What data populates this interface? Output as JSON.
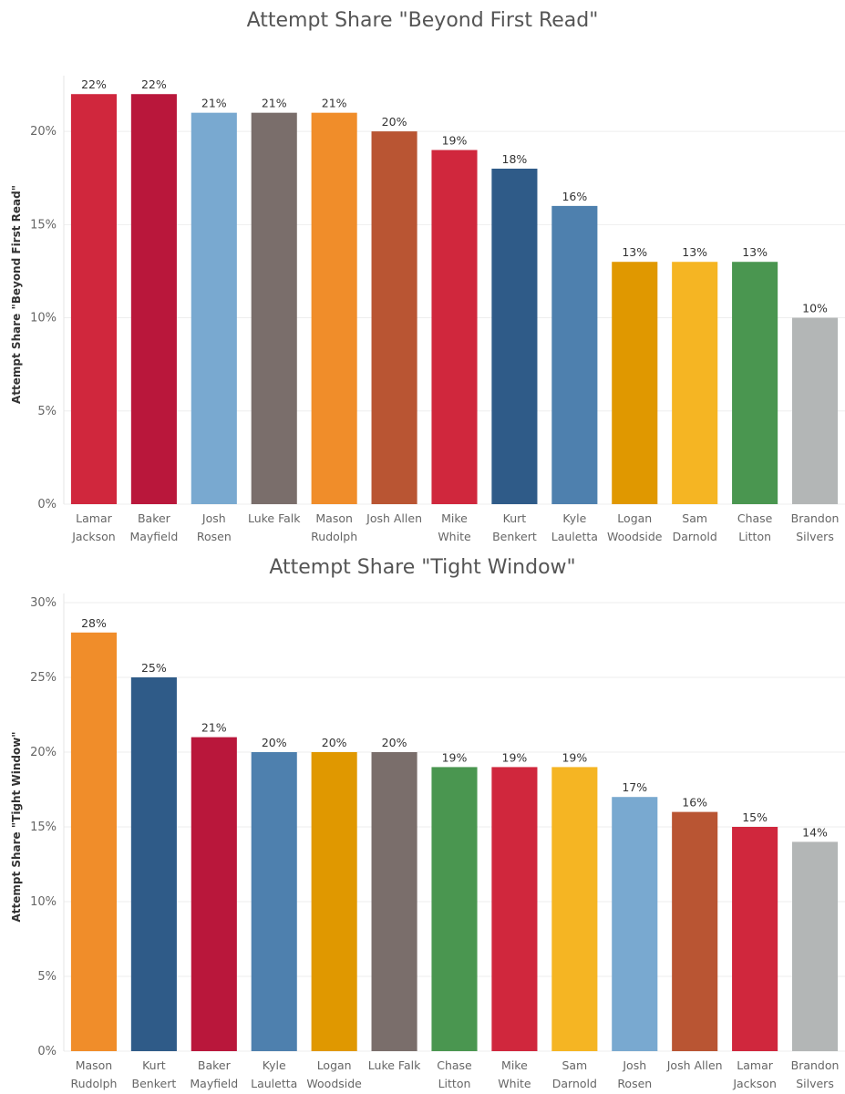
{
  "chart_data": [
    {
      "type": "bar",
      "title": "Attempt Share \"Beyond First Read\"",
      "ylabel": "Attempt Share \"Beyond First Read\"",
      "xlabel": "",
      "ylim": [
        0,
        22.5
      ],
      "yticks": [
        0,
        5,
        10,
        15,
        20
      ],
      "ytick_labels": [
        "0%",
        "5%",
        "10%",
        "15%",
        "20%"
      ],
      "grid": true,
      "categories": [
        [
          "Lamar",
          "Jackson"
        ],
        [
          "Baker",
          "Mayfield"
        ],
        [
          "Josh",
          "Rosen"
        ],
        [
          "Luke Falk"
        ],
        [
          "Mason",
          "Rudolph"
        ],
        [
          "Josh Allen"
        ],
        [
          "Mike",
          "White"
        ],
        [
          "Kurt",
          "Benkert"
        ],
        [
          "Kyle",
          "Lauletta"
        ],
        [
          "Logan",
          "Woodside"
        ],
        [
          "Sam",
          "Darnold"
        ],
        [
          "Chase",
          "Litton"
        ],
        [
          "Brandon",
          "Silvers"
        ]
      ],
      "values": [
        22,
        22,
        21,
        21,
        21,
        20,
        19,
        18,
        16,
        13,
        13,
        13,
        10
      ],
      "value_labels": [
        "22%",
        "22%",
        "21%",
        "21%",
        "21%",
        "20%",
        "19%",
        "18%",
        "16%",
        "13%",
        "13%",
        "13%",
        "10%"
      ],
      "colors": [
        "#d0273d",
        "#b9173b",
        "#79a9d0",
        "#7a6e6b",
        "#f08d2a",
        "#b95533",
        "#d0273d",
        "#2f5b88",
        "#4e80ae",
        "#e09800",
        "#f5b523",
        "#4a9650",
        "#b3b6b6"
      ]
    },
    {
      "type": "bar",
      "title": "Attempt Share \"Tight Window\"",
      "ylabel": "Attempt Share \"Tight Window\"",
      "xlabel": "",
      "ylim": [
        0,
        30
      ],
      "yticks": [
        0,
        5,
        10,
        15,
        20,
        25,
        30
      ],
      "ytick_labels": [
        "0%",
        "5%",
        "10%",
        "15%",
        "20%",
        "25%",
        "30%"
      ],
      "grid": true,
      "categories": [
        [
          "Mason",
          "Rudolph"
        ],
        [
          "Kurt",
          "Benkert"
        ],
        [
          "Baker",
          "Mayfield"
        ],
        [
          "Kyle",
          "Lauletta"
        ],
        [
          "Logan",
          "Woodside"
        ],
        [
          "Luke Falk"
        ],
        [
          "Chase",
          "Litton"
        ],
        [
          "Mike",
          "White"
        ],
        [
          "Sam",
          "Darnold"
        ],
        [
          "Josh",
          "Rosen"
        ],
        [
          "Josh Allen"
        ],
        [
          "Lamar",
          "Jackson"
        ],
        [
          "Brandon",
          "Silvers"
        ]
      ],
      "values": [
        28,
        25,
        21,
        20,
        20,
        20,
        19,
        19,
        19,
        17,
        16,
        15,
        14
      ],
      "value_labels": [
        "28%",
        "25%",
        "21%",
        "20%",
        "20%",
        "20%",
        "19%",
        "19%",
        "19%",
        "17%",
        "16%",
        "15%",
        "14%"
      ],
      "colors": [
        "#f08d2a",
        "#2f5b88",
        "#b9173b",
        "#4e80ae",
        "#e09800",
        "#7a6e6b",
        "#4a9650",
        "#d0273d",
        "#f5b523",
        "#79a9d0",
        "#b95533",
        "#d0273d",
        "#b3b6b6"
      ]
    }
  ]
}
